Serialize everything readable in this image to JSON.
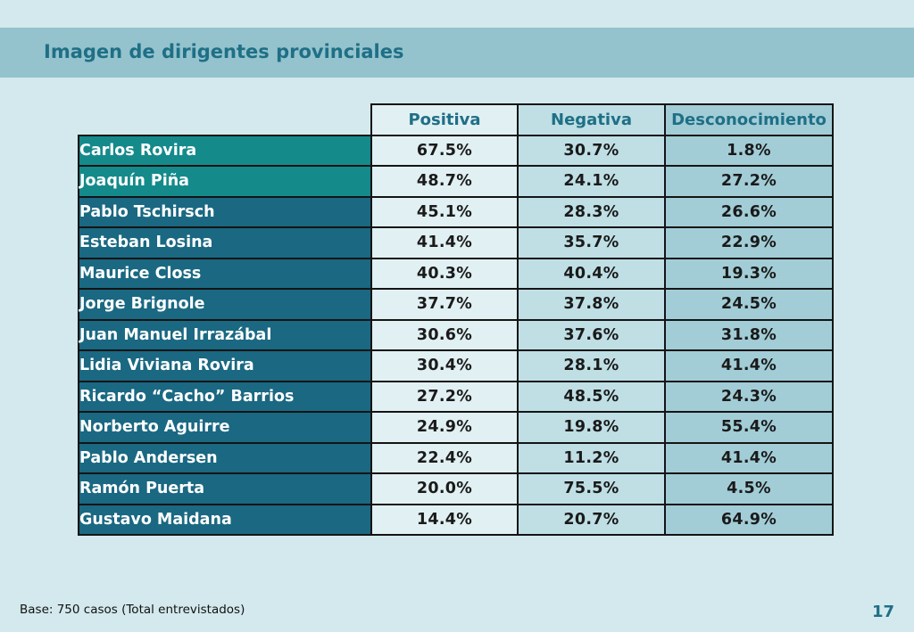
{
  "slide": {
    "title": "Imagen de dirigentes provinciales",
    "footnote": "Base: 750 casos (Total entrevistados)",
    "page_number": "17"
  },
  "table": {
    "columns": [
      "Positiva",
      "Negativa",
      "Desconocimiento"
    ],
    "rows": [
      {
        "name": "Carlos Rovira",
        "values": [
          "67.5%",
          "30.7%",
          "1.8%"
        ],
        "highlight": true
      },
      {
        "name": "Joaquín Piña",
        "values": [
          "48.7%",
          "24.1%",
          "27.2%"
        ],
        "highlight": true
      },
      {
        "name": "Pablo Tschirsch",
        "values": [
          "45.1%",
          "28.3%",
          "26.6%"
        ],
        "highlight": false
      },
      {
        "name": "Esteban Losina",
        "values": [
          "41.4%",
          "35.7%",
          "22.9%"
        ],
        "highlight": false
      },
      {
        "name": "Maurice Closs",
        "values": [
          "40.3%",
          "40.4%",
          "19.3%"
        ],
        "highlight": false
      },
      {
        "name": "Jorge Brignole",
        "values": [
          "37.7%",
          "37.8%",
          "24.5%"
        ],
        "highlight": false
      },
      {
        "name": "Juan Manuel Irrazábal",
        "values": [
          "30.6%",
          "37.6%",
          "31.8%"
        ],
        "highlight": false
      },
      {
        "name": "Lidia Viviana Rovira",
        "values": [
          "30.4%",
          "28.1%",
          "41.4%"
        ],
        "highlight": false
      },
      {
        "name": "Ricardo “Cacho” Barrios",
        "values": [
          "27.2%",
          "48.5%",
          "24.3%"
        ],
        "highlight": false
      },
      {
        "name": "Norberto Aguirre",
        "values": [
          "24.9%",
          "19.8%",
          "55.4%"
        ],
        "highlight": false
      },
      {
        "name": "Pablo Andersen",
        "values": [
          "22.4%",
          "11.2%",
          "41.4%"
        ],
        "highlight": false
      },
      {
        "name": "Ramón Puerta",
        "values": [
          "20.0%",
          "75.5%",
          "4.5%"
        ],
        "highlight": false
      },
      {
        "name": "Gustavo Maidana",
        "values": [
          "14.4%",
          "20.7%",
          "64.9%"
        ],
        "highlight": false
      }
    ]
  },
  "colors": {
    "background": "#d3e9ed",
    "title_band": "#94c3cd",
    "title_text": "#1f6f86",
    "name_highlight": "#148a8b",
    "name_default": "#1a6882",
    "col_positiva": "#e1f0f3",
    "col_negativa": "#bfdfe5",
    "col_desconocimiento": "#a2cdd6"
  }
}
